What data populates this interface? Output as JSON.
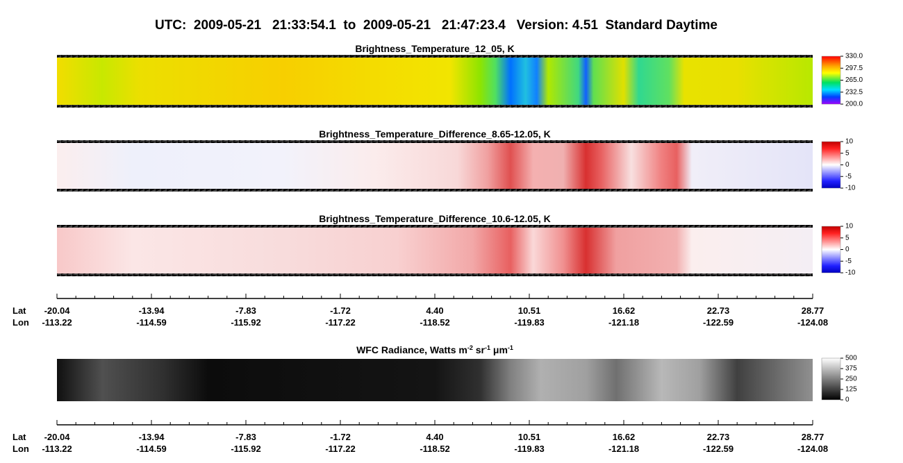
{
  "title": "UTC:  2009-05-21   21:33:54.1  to  2009-05-21   21:47:23.4   Version: 4.51  Standard Daytime",
  "panels": [
    {
      "title": "Brightness_Temperature_12_05, K",
      "colorbar": [
        "330.0",
        "297.5",
        "265.0",
        "232.5",
        "200.0"
      ]
    },
    {
      "title": "Brightness_Temperature_Difference_8.65-12.05, K",
      "colorbar": [
        "10",
        "5",
        "0",
        "-5",
        "-10"
      ]
    },
    {
      "title": "Brightness_Temperature_Difference_10.6-12.05, K",
      "colorbar": [
        "10",
        "5",
        "0",
        "-5",
        "-10"
      ]
    },
    {
      "title_parts": [
        "WFC Radiance, Watts m",
        "-2",
        " sr",
        "-1",
        " μm",
        "-1"
      ],
      "colorbar": [
        "500",
        "375",
        "250",
        "125",
        "0"
      ]
    }
  ],
  "axes": [
    {
      "lat_label": "Lat",
      "lon_label": "Lon",
      "lat": [
        "-20.04",
        "-13.94",
        "-7.83",
        "-1.72",
        "4.40",
        "10.51",
        "16.62",
        "22.73",
        "28.77"
      ],
      "lon": [
        "-113.22",
        "-114.59",
        "-115.92",
        "-117.22",
        "-118.52",
        "-119.83",
        "-121.18",
        "-122.59",
        "-124.08"
      ]
    },
    {
      "lat_label": "Lat",
      "lon_label": "Lon",
      "lat": [
        "-20.04",
        "-13.94",
        "-7.83",
        "-1.72",
        "4.40",
        "10.51",
        "16.62",
        "22.73",
        "28.77"
      ],
      "lon": [
        "-113.22",
        "-114.59",
        "-115.92",
        "-117.22",
        "-118.52",
        "-119.83",
        "-121.18",
        "-122.59",
        "-124.08"
      ]
    }
  ]
}
